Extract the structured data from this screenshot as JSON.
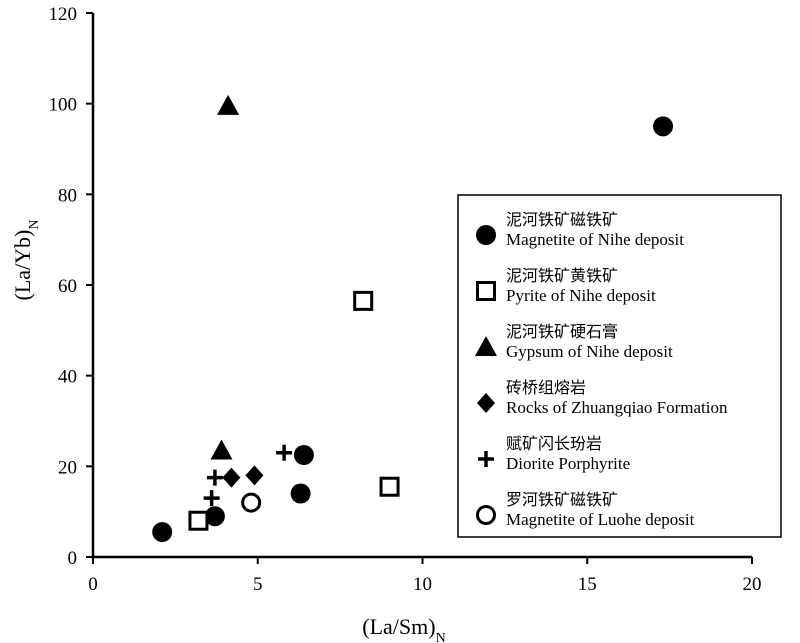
{
  "chart_data": {
    "type": "scatter",
    "title": "",
    "xlabel": "(La/Sm)",
    "xlabel_sub": "N",
    "ylabel": "(La/Yb)",
    "ylabel_sub": "N",
    "xlim": [
      0,
      20
    ],
    "ylim": [
      0,
      120
    ],
    "xticks": [
      0,
      5,
      10,
      15,
      20
    ],
    "yticks": [
      0,
      20,
      40,
      60,
      80,
      100,
      120
    ],
    "grid": false,
    "legend_position": "right",
    "series": [
      {
        "name_cn": "泥河铁矿磁铁矿",
        "name": "Magnetite of Nihe deposit",
        "marker": "filled-circle",
        "x": [
          2.1,
          3.7,
          6.3,
          6.4,
          17.3
        ],
        "y": [
          5.5,
          9,
          14,
          22.5,
          95
        ]
      },
      {
        "name_cn": "泥河铁矿黄铁矿",
        "name": "Pyrite of Nihe deposit",
        "marker": "open-square",
        "x": [
          3.2,
          8.2,
          9.0
        ],
        "y": [
          8,
          56.5,
          15.5
        ]
      },
      {
        "name_cn": "泥河铁矿硬石膏",
        "name": "Gypsum of Nihe deposit",
        "marker": "filled-triangle",
        "x": [
          4.1,
          3.9
        ],
        "y": [
          99.5,
          23.5
        ]
      },
      {
        "name_cn": "砖桥组熔岩",
        "name": "Rocks of Zhuangqiao Formation",
        "marker": "filled-diamond",
        "x": [
          4.2,
          4.9
        ],
        "y": [
          17.5,
          18
        ]
      },
      {
        "name_cn": "赋矿闪长玢岩",
        "name": "Diorite Porphyrite",
        "marker": "plus",
        "x": [
          3.6,
          3.7,
          5.8
        ],
        "y": [
          13,
          17.5,
          23
        ]
      },
      {
        "name_cn": "罗河铁矿磁铁矿",
        "name": "Magnetite of Luohe deposit",
        "marker": "open-circle",
        "x": [
          4.8
        ],
        "y": [
          12
        ]
      }
    ]
  }
}
